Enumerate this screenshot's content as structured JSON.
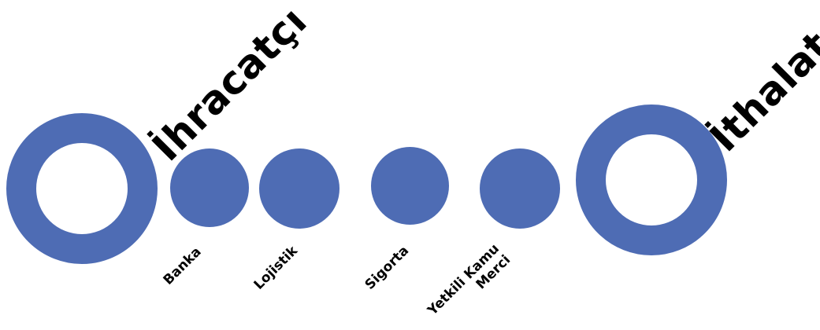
{
  "colors": {
    "node": "#4e6cb4",
    "text": "#000000",
    "background": "#ffffff"
  },
  "diagram": {
    "exporter": {
      "label": "İhracatçı"
    },
    "importer": {
      "label": "İthalatçı"
    },
    "intermediaries": [
      {
        "label": "Banka"
      },
      {
        "label": "Lojistik"
      },
      {
        "label": "Sigorta"
      },
      {
        "label": "Yetkili Kamu\nMerci"
      }
    ]
  }
}
